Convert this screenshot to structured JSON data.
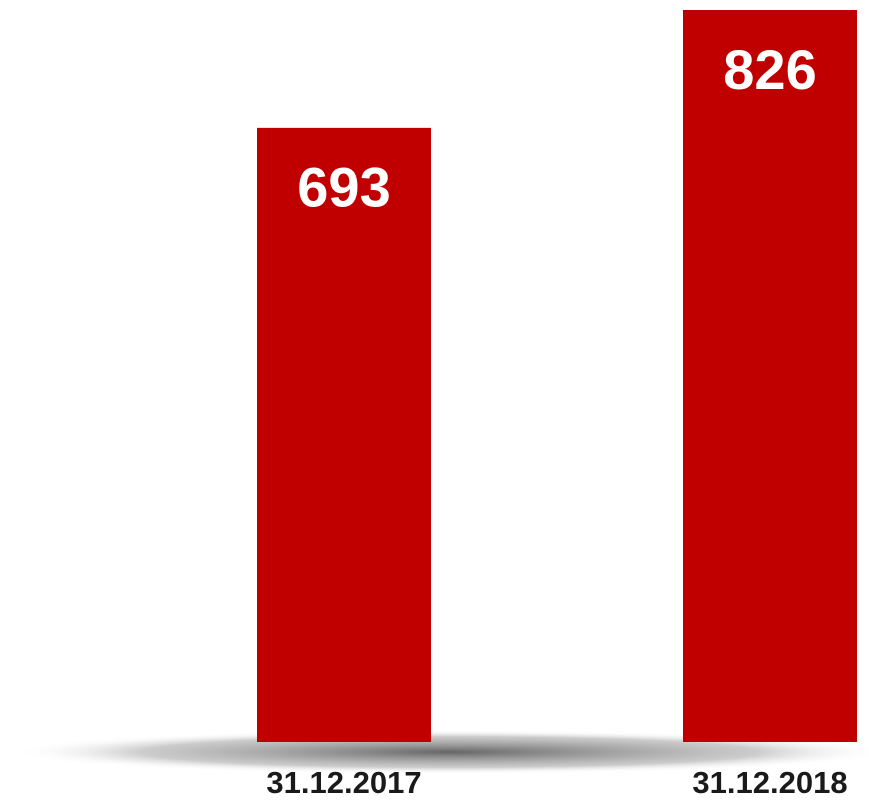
{
  "chart_data": {
    "type": "bar",
    "categories": [
      "31.12.2017",
      "31.12.2018"
    ],
    "values": [
      693,
      826
    ],
    "color": "#c00000"
  }
}
